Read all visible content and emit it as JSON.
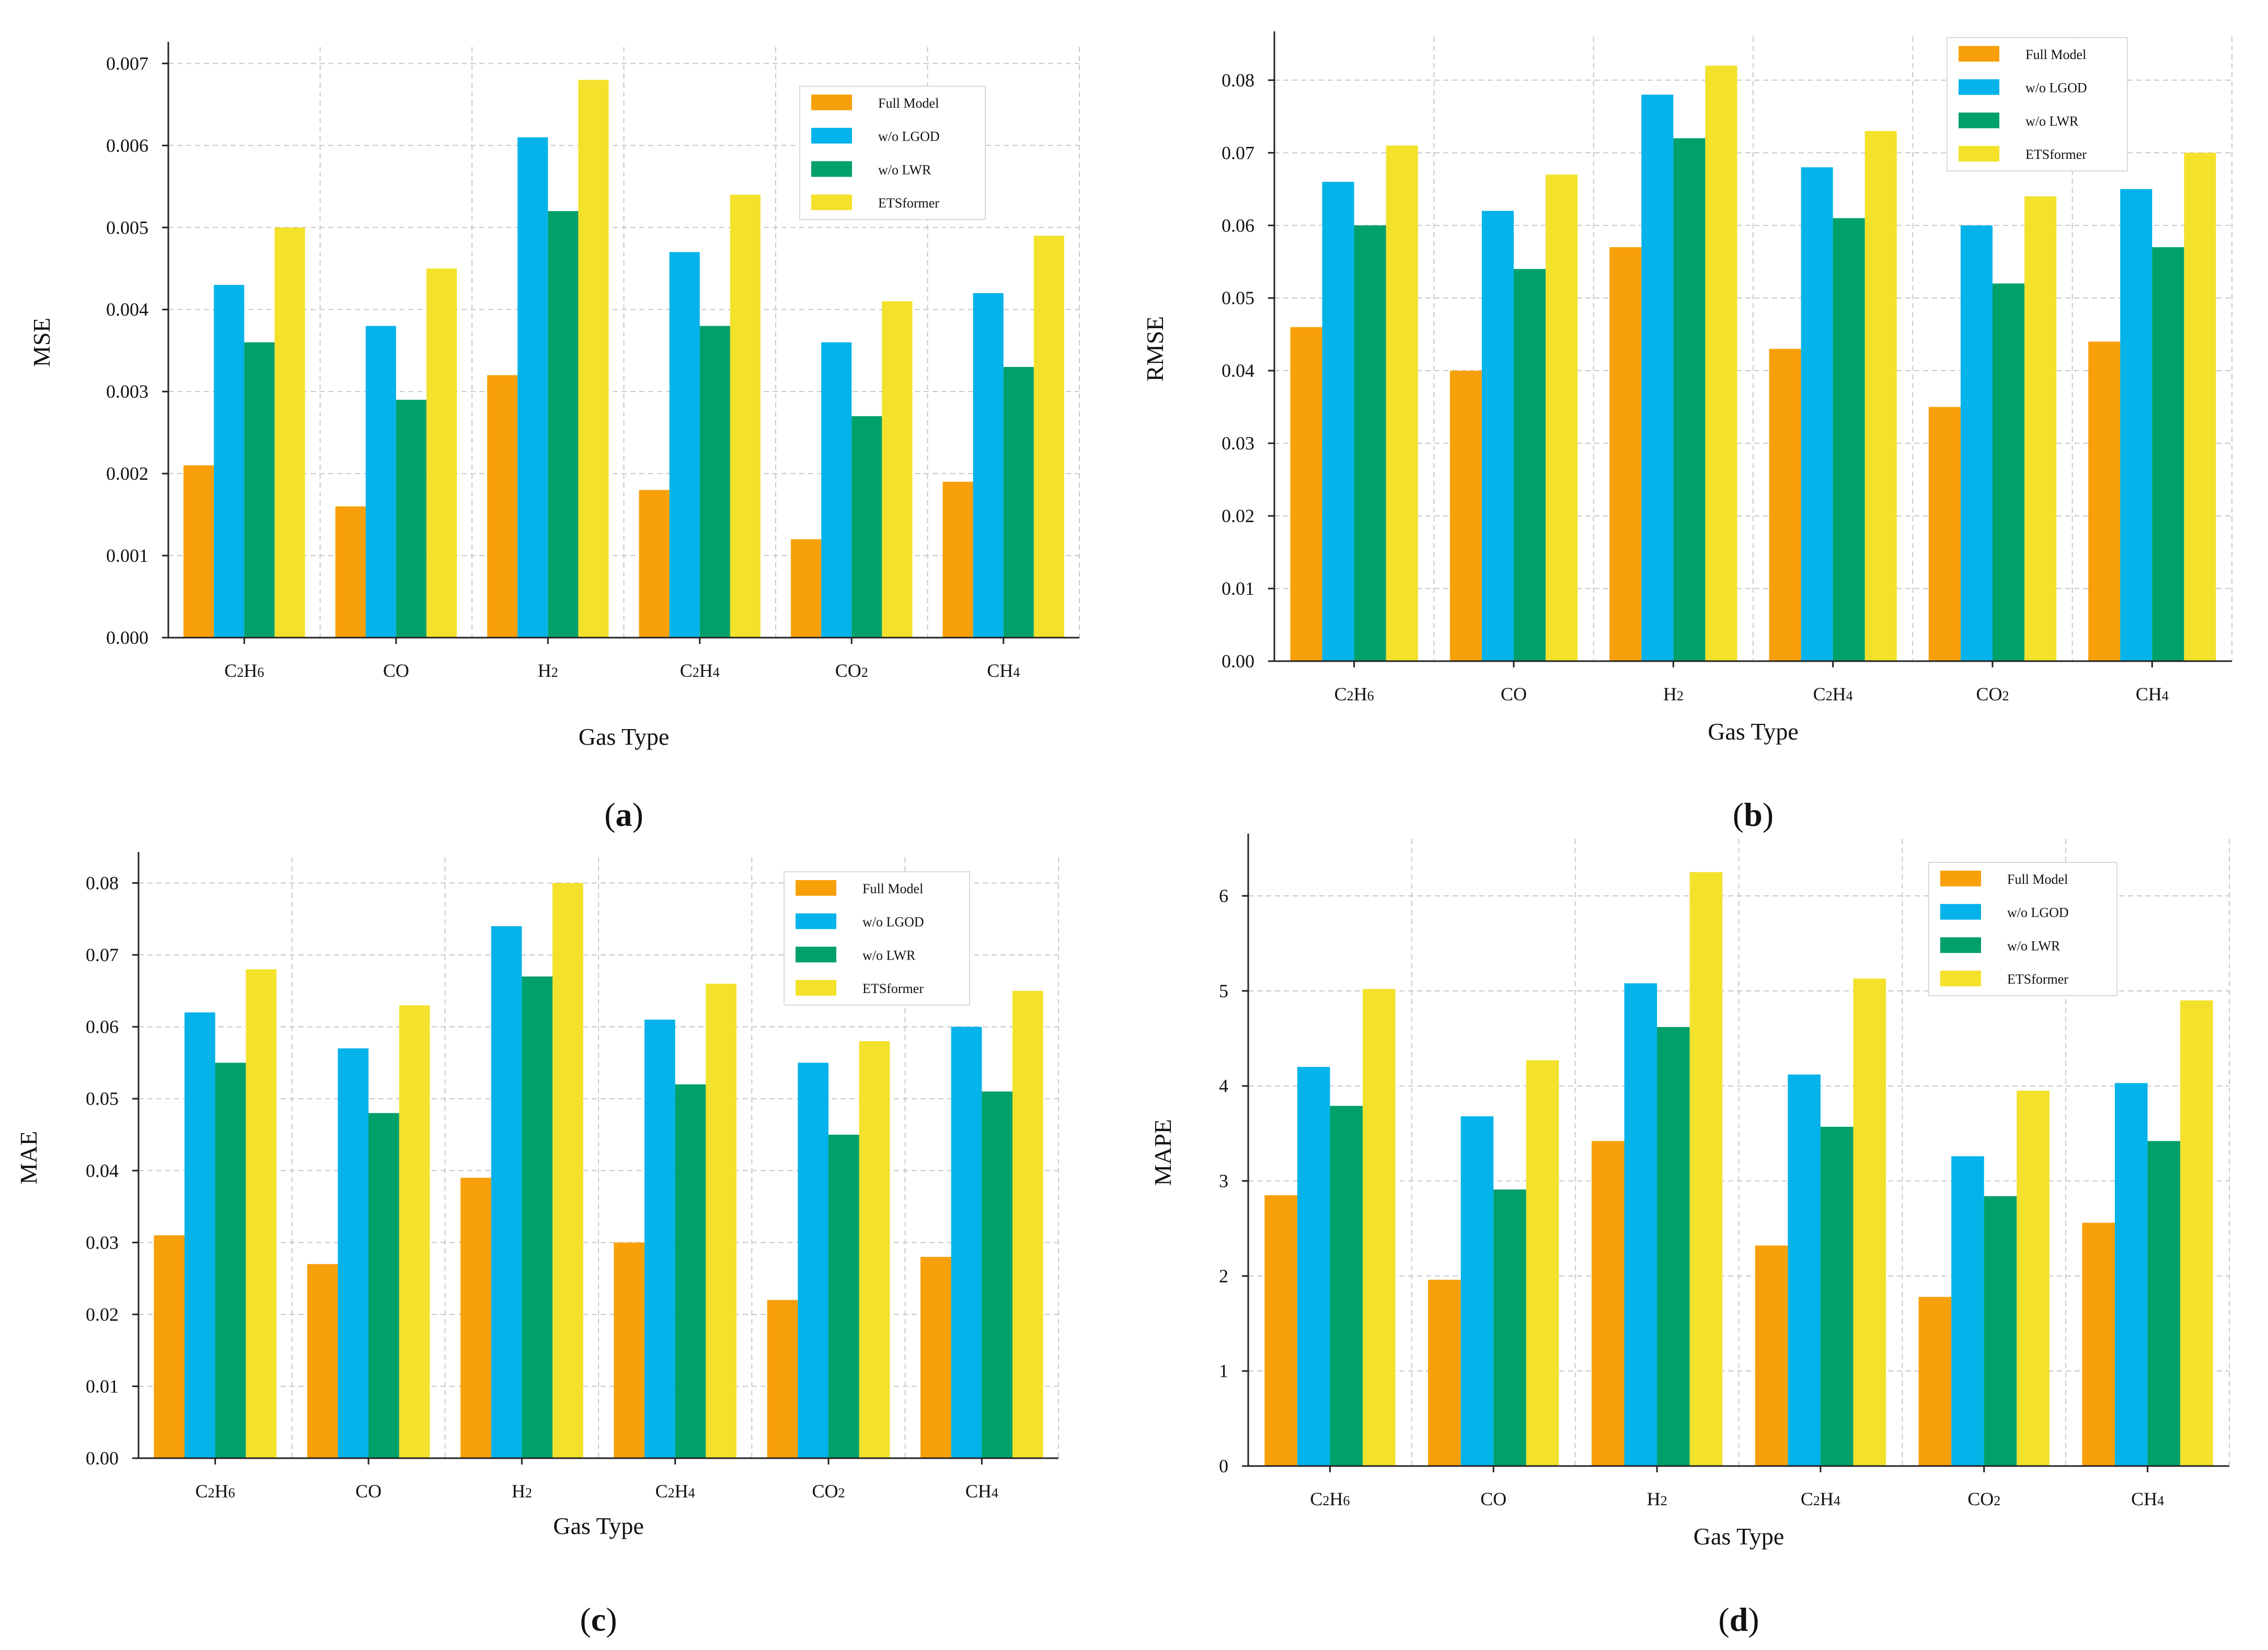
{
  "colors": {
    "full_model": "#f8a009",
    "wo_lgod": "#03b3e9",
    "wo_lwr": "#00a06a",
    "etsformer": "#f3e12c"
  },
  "chart_data": [
    {
      "type": "bar",
      "panel": "(a)",
      "panel_letter": "a",
      "xlabel": "Gas Type",
      "ylabel": "MSE",
      "ylim": [
        0,
        0.0072
      ],
      "yticks": [
        0,
        0.001,
        0.002,
        0.003,
        0.004,
        0.005,
        0.006,
        0.007
      ],
      "ytick_labels": [
        "0.000",
        "0.001",
        "0.002",
        "0.003",
        "0.004",
        "0.005",
        "0.006",
        "0.007"
      ],
      "grid": true,
      "legend_position": "top-right",
      "categories": [
        "C2H6",
        "CO",
        "H2",
        "C2H4",
        "CO2",
        "CH4"
      ],
      "series": [
        {
          "name": "Full Model",
          "values": [
            0.0021,
            0.0016,
            0.0032,
            0.0018,
            0.0012,
            0.0019
          ]
        },
        {
          "name": "w/o LGOD",
          "values": [
            0.0043,
            0.0038,
            0.0061,
            0.0047,
            0.0036,
            0.0042
          ]
        },
        {
          "name": "w/o LWR",
          "values": [
            0.0036,
            0.0029,
            0.0052,
            0.0038,
            0.0027,
            0.0033
          ]
        },
        {
          "name": "ETSformer",
          "values": [
            0.005,
            0.0045,
            0.0068,
            0.0054,
            0.0041,
            0.0049
          ]
        }
      ]
    },
    {
      "type": "bar",
      "panel": "(b)",
      "panel_letter": "b",
      "xlabel": "Gas Type",
      "ylabel": "RMSE",
      "ylim": [
        0,
        0.086
      ],
      "yticks": [
        0,
        0.01,
        0.02,
        0.03,
        0.04,
        0.05,
        0.06,
        0.07,
        0.08
      ],
      "ytick_labels": [
        "0.00",
        "0.01",
        "0.02",
        "0.03",
        "0.04",
        "0.05",
        "0.06",
        "0.07",
        "0.08"
      ],
      "grid": true,
      "legend_position": "top-right",
      "categories": [
        "C2H6",
        "CO",
        "H2",
        "C2H4",
        "CO2",
        "CH4"
      ],
      "series": [
        {
          "name": "Full Model",
          "values": [
            0.046,
            0.04,
            0.057,
            0.043,
            0.035,
            0.044
          ]
        },
        {
          "name": "w/o LGOD",
          "values": [
            0.066,
            0.062,
            0.078,
            0.068,
            0.06,
            0.065
          ]
        },
        {
          "name": "w/o LWR",
          "values": [
            0.06,
            0.054,
            0.072,
            0.061,
            0.052,
            0.057
          ]
        },
        {
          "name": "ETSformer",
          "values": [
            0.071,
            0.067,
            0.082,
            0.073,
            0.064,
            0.07
          ]
        }
      ]
    },
    {
      "type": "bar",
      "panel": "(c)",
      "panel_letter": "c",
      "xlabel": "Gas Type",
      "ylabel": "MAE",
      "ylim": [
        0,
        0.0836
      ],
      "yticks": [
        0,
        0.01,
        0.02,
        0.03,
        0.04,
        0.05,
        0.06,
        0.07,
        0.08
      ],
      "ytick_labels": [
        "0.00",
        "0.01",
        "0.02",
        "0.03",
        "0.04",
        "0.05",
        "0.06",
        "0.07",
        "0.08"
      ],
      "grid": true,
      "legend_position": "top-right",
      "categories": [
        "C2H6",
        "CO",
        "H2",
        "C2H4",
        "CO2",
        "CH4"
      ],
      "series": [
        {
          "name": "Full Model",
          "values": [
            0.031,
            0.027,
            0.039,
            0.03,
            0.022,
            0.028
          ]
        },
        {
          "name": "w/o LGOD",
          "values": [
            0.062,
            0.057,
            0.074,
            0.061,
            0.055,
            0.06
          ]
        },
        {
          "name": "w/o LWR",
          "values": [
            0.055,
            0.048,
            0.067,
            0.052,
            0.045,
            0.051
          ]
        },
        {
          "name": "ETSformer",
          "values": [
            0.068,
            0.063,
            0.08,
            0.066,
            0.058,
            0.065
          ]
        }
      ]
    },
    {
      "type": "bar",
      "panel": "(d)",
      "panel_letter": "d",
      "xlabel": "Gas Type",
      "ylabel": "MAPE",
      "ylim": [
        0,
        6.6
      ],
      "yticks": [
        0,
        1,
        2,
        3,
        4,
        5,
        6
      ],
      "ytick_labels": [
        "0",
        "1",
        "2",
        "3",
        "4",
        "5",
        "6"
      ],
      "grid": true,
      "legend_position": "top-right",
      "categories": [
        "C2H6",
        "CO",
        "H2",
        "C2H4",
        "CO2",
        "CH4"
      ],
      "series": [
        {
          "name": "Full Model",
          "values": [
            2.85,
            1.96,
            3.42,
            2.32,
            1.78,
            2.56
          ]
        },
        {
          "name": "w/o LGOD",
          "values": [
            4.2,
            3.68,
            5.08,
            4.12,
            3.26,
            4.03
          ]
        },
        {
          "name": "w/o LWR",
          "values": [
            3.79,
            2.91,
            4.62,
            3.57,
            2.84,
            3.42
          ]
        },
        {
          "name": "ETSformer",
          "values": [
            5.02,
            4.27,
            6.25,
            5.13,
            3.95,
            4.9
          ]
        }
      ]
    }
  ]
}
